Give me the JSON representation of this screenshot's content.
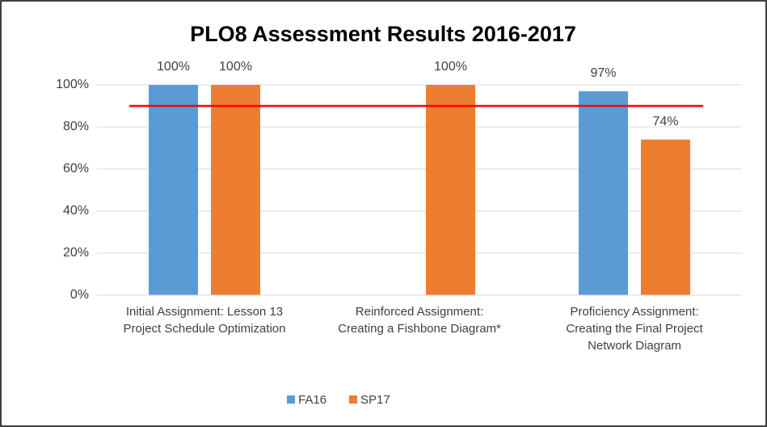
{
  "chart_data": {
    "type": "bar",
    "title": "PLO8 Assessment Results 2016-2017",
    "categories": [
      "Initial Assignment: Lesson 13\nProject Schedule Optimization",
      "Reinforced Assignment:\nCreating a Fishbone Diagram*",
      "Proficiency Assignment:\nCreating the Final Project\nNetwork Diagram"
    ],
    "series": [
      {
        "name": "FA16",
        "color": "#5b9bd5",
        "values": [
          100,
          null,
          97
        ],
        "value_labels": [
          "100%",
          null,
          "97%"
        ]
      },
      {
        "name": "SP17",
        "color": "#ed7d31",
        "values": [
          100,
          100,
          74
        ],
        "value_labels": [
          "100%",
          "100%",
          "74%"
        ]
      }
    ],
    "reference_line": {
      "value": 90,
      "color": "#ff0000"
    },
    "ylim": [
      0,
      100
    ],
    "yticks": [
      {
        "value": 0,
        "label": "0%"
      },
      {
        "value": 20,
        "label": "20%"
      },
      {
        "value": 40,
        "label": "40%"
      },
      {
        "value": 60,
        "label": "60%"
      },
      {
        "value": 80,
        "label": "80%"
      },
      {
        "value": 100,
        "label": "100%"
      }
    ],
    "grid": true,
    "legend": "bottom"
  }
}
